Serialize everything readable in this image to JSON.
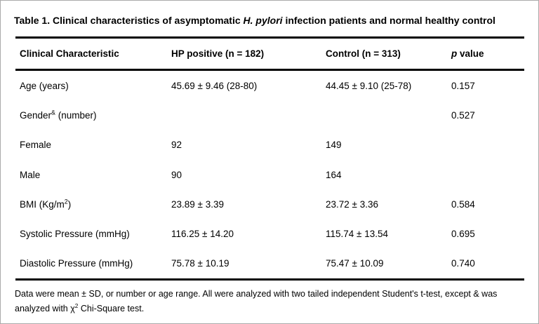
{
  "page": {
    "title": {
      "pre": "Table 1. Clinical characteristics of asymptomatic ",
      "italic": "H. pylori",
      "post": " infection patients and normal healthy control"
    },
    "table": {
      "headers": [
        "Clinical Characteristic",
        "HP positive (n = 182)",
        "Control (n = 313)"
      ],
      "header_p": {
        "italic": "p",
        "rest": " value"
      },
      "rows": [
        {
          "label_pre": "Age (years)",
          "label_sup": "",
          "label_post": "",
          "hp": "45.69 ± 9.46 (28-80)",
          "control": "44.45 ± 9.10 (25-78)",
          "p": "0.157"
        },
        {
          "label_pre": "Gender",
          "label_sup": "&",
          "label_post": " (number)",
          "hp": "",
          "control": "",
          "p": "0.527"
        },
        {
          "label_pre": "Female",
          "label_sup": "",
          "label_post": "",
          "hp": "92",
          "control": "149",
          "p": ""
        },
        {
          "label_pre": "Male",
          "label_sup": "",
          "label_post": "",
          "hp": "90",
          "control": "164",
          "p": ""
        },
        {
          "label_pre": "BMI (Kg/m",
          "label_sup": "2",
          "label_post": ")",
          "hp": "23.89 ± 3.39",
          "control": "23.72 ± 3.36",
          "p": "0.584"
        },
        {
          "label_pre": "Systolic Pressure (mmHg)",
          "label_sup": "",
          "label_post": "",
          "hp": "116.25 ± 14.20",
          "control": "115.74 ± 13.54",
          "p": "0.695"
        },
        {
          "label_pre": "Diastolic Pressure (mmHg)",
          "label_sup": "",
          "label_post": "",
          "hp": "75.78 ± 10.19",
          "control": "75.47 ± 10.09",
          "p": "0.740"
        }
      ]
    },
    "footnote": {
      "pre": "Data were mean ± SD, or number or age range. All were analyzed with two tailed independent Student's t-test, except & was analyzed with χ",
      "sup": "2",
      "post": " Chi-Square test."
    },
    "colors": {
      "text": "#000000",
      "rule": "#000000",
      "frame": "#aaaaaa",
      "background": "#ffffff"
    }
  }
}
